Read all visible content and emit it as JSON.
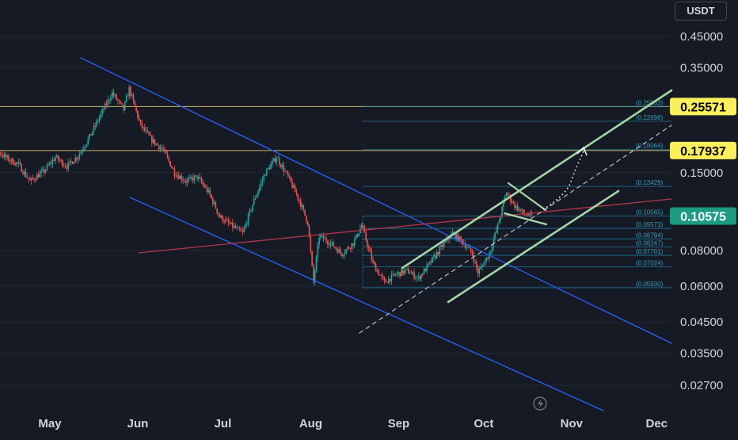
{
  "currency": "USDT",
  "colors": {
    "background": "#161a25",
    "up_candle": "#26a69a",
    "down_candle": "#ef5350",
    "descending_channel": "#2962ff",
    "red_trendline": "#b2374a",
    "green_channel": "#a5d6a7",
    "fib_lines": "#2196c4",
    "horizontal_resistance": "#c8b560",
    "price_tag_yellow": "#fbef5b",
    "price_tag_green": "#1c9a82"
  },
  "chart_data": {
    "type": "candlestick",
    "log_scale": true,
    "x_axis_labels": [
      "May",
      "Jun",
      "Jul",
      "Aug",
      "Sep",
      "Oct",
      "Nov",
      "Dec"
    ],
    "y_axis_ticks": [
      "0.45000",
      "0.35000",
      "0.15000",
      "0.08000",
      "0.06000",
      "0.04500",
      "0.03500",
      "0.02700"
    ],
    "y_axis_values": [
      0.45,
      0.35,
      0.15,
      0.08,
      0.06,
      0.045,
      0.035,
      0.027
    ],
    "price_tags": [
      {
        "label": "0.25571",
        "value": 0.25571,
        "style": "yellow"
      },
      {
        "label": "0.17937",
        "value": 0.17937,
        "style": "yellow"
      },
      {
        "label": "0.10575",
        "value": 0.10575,
        "style": "green"
      }
    ],
    "fib_levels": [
      {
        "label": "(0.25563)",
        "value": 0.25563
      },
      {
        "label": "(0.22698)",
        "value": 0.22698
      },
      {
        "label": "(0.18064)",
        "value": 0.18064
      },
      {
        "label": "(0.13429)",
        "value": 0.13429
      },
      {
        "label": "(0.10565)",
        "value": 0.10565
      },
      {
        "label": "(0.09573)",
        "value": 0.09573
      },
      {
        "label": "(0.08794)",
        "value": 0.08794
      },
      {
        "label": "(0.08247)",
        "value": 0.08247
      },
      {
        "label": "(0.07701)",
        "value": 0.07701
      },
      {
        "label": "(0.07024)",
        "value": 0.07024
      },
      {
        "label": "(0.05930)",
        "value": 0.0593
      }
    ],
    "price_path": [
      [
        "Apr 10",
        0.155
      ],
      [
        "Apr 14",
        0.165
      ],
      [
        "Apr 18",
        0.18
      ],
      [
        "Apr 22",
        0.168
      ],
      [
        "Apr 26",
        0.16
      ],
      [
        "Apr 30",
        0.14
      ],
      [
        "May 4",
        0.152
      ],
      [
        "May 8",
        0.17
      ],
      [
        "May 12",
        0.158
      ],
      [
        "May 16",
        0.172
      ],
      [
        "May 20",
        0.2
      ],
      [
        "May 24",
        0.24
      ],
      [
        "May 28",
        0.285
      ],
      [
        "Jun 1",
        0.25
      ],
      [
        "Jun 3",
        0.295
      ],
      [
        "Jun 7",
        0.22
      ],
      [
        "Jun 11",
        0.195
      ],
      [
        "Jun 15",
        0.18
      ],
      [
        "Jun 19",
        0.15
      ],
      [
        "Jun 23",
        0.14
      ],
      [
        "Jun 27",
        0.145
      ],
      [
        "Jul 1",
        0.128
      ],
      [
        "Jul 5",
        0.105
      ],
      [
        "Jul 9",
        0.098
      ],
      [
        "Jul 13",
        0.092
      ],
      [
        "Jul 17",
        0.12
      ],
      [
        "Jul 21",
        0.15
      ],
      [
        "Jul 25",
        0.17
      ],
      [
        "Jul 29",
        0.145
      ],
      [
        "Aug 2",
        0.12
      ],
      [
        "Aug 5",
        0.1
      ],
      [
        "Aug 7",
        0.062
      ],
      [
        "Aug 9",
        0.09
      ],
      [
        "Aug 13",
        0.085
      ],
      [
        "Aug 17",
        0.078
      ],
      [
        "Aug 21",
        0.085
      ],
      [
        "Aug 24",
        0.098
      ],
      [
        "Aug 28",
        0.072
      ],
      [
        "Sep 1",
        0.062
      ],
      [
        "Sep 5",
        0.066
      ],
      [
        "Sep 9",
        0.068
      ],
      [
        "Sep 13",
        0.064
      ],
      [
        "Sep 17",
        0.072
      ],
      [
        "Sep 21",
        0.082
      ],
      [
        "Sep 25",
        0.092
      ],
      [
        "Sep 29",
        0.085
      ],
      [
        "Oct 2",
        0.078
      ],
      [
        "Oct 4",
        0.067
      ],
      [
        "Oct 8",
        0.078
      ],
      [
        "Oct 11",
        0.098
      ],
      [
        "Oct 14",
        0.128
      ],
      [
        "Oct 17",
        0.115
      ],
      [
        "Oct 20",
        0.108
      ],
      [
        "Oct 23",
        0.105
      ]
    ]
  }
}
